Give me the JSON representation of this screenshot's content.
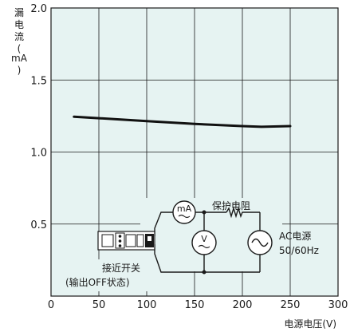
{
  "chart_data": {
    "type": "line",
    "xlabel": "电源电压(V)",
    "ylabel_chars": [
      "漏",
      "电",
      "流",
      "(",
      "mA",
      ")"
    ],
    "xlim": [
      0,
      300
    ],
    "ylim": [
      0,
      2.0
    ],
    "x_ticks": [
      "0",
      "50",
      "100",
      "150",
      "200",
      "250",
      "300"
    ],
    "y_ticks": [
      "0.5",
      "1.0",
      "1.5",
      "2.0"
    ],
    "grid": true,
    "background": "#e6f3f2",
    "line_color": "#111111",
    "series": [
      {
        "x": [
          24,
          50,
          100,
          150,
          200,
          220,
          250
        ],
        "values": [
          1.245,
          1.235,
          1.215,
          1.195,
          1.18,
          1.175,
          1.18
        ]
      }
    ]
  },
  "circuit": {
    "sensor_label": "接近开关",
    "sensor_sublabel": "(输出OFF状态)",
    "ammeter_symbol": "mA",
    "voltmeter_symbol": "V",
    "resistor_label": "保护电阻",
    "source_label": "AC电源",
    "source_spec": "50/60Hz"
  }
}
